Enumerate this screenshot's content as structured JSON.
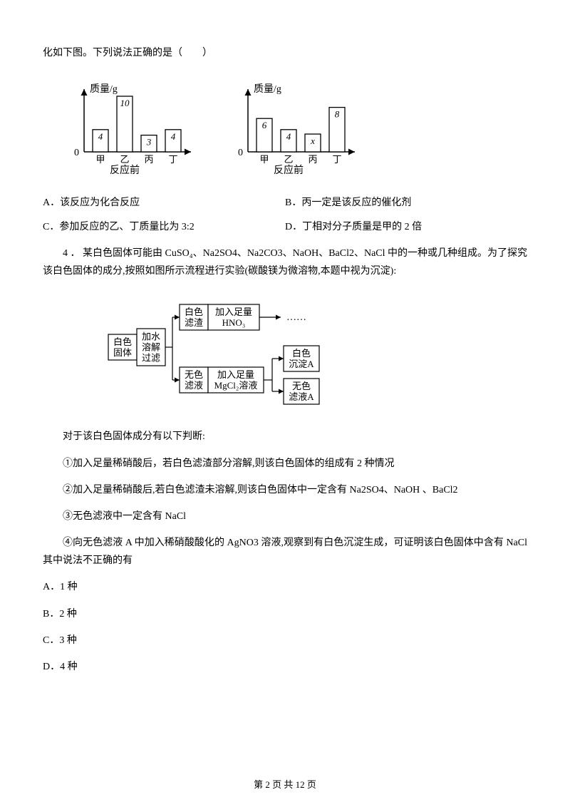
{
  "q3": {
    "intro": "化如下图。下列说法正确的是（　　）",
    "chart_before": {
      "ylabel": "质量/g",
      "xlabel": "反应前",
      "bars": [
        {
          "label": "甲",
          "value": 4,
          "display": "4"
        },
        {
          "label": "乙",
          "value": 10,
          "display": "10"
        },
        {
          "label": "丙",
          "value": 3,
          "display": "3"
        },
        {
          "label": "丁",
          "value": 4,
          "display": "4"
        }
      ],
      "axis_color": "#000000",
      "bg": "#ffffff",
      "bar_fill": "#ffffff",
      "bar_stroke": "#000000"
    },
    "chart_after": {
      "ylabel": "质量/g",
      "xlabel": "反应前",
      "bars": [
        {
          "label": "甲",
          "value": 6,
          "display": "6"
        },
        {
          "label": "乙",
          "value": 4,
          "display": "4"
        },
        {
          "label": "丙",
          "value": 3.2,
          "display": "x"
        },
        {
          "label": "丁",
          "value": 8,
          "display": "8"
        }
      ],
      "axis_color": "#000000",
      "bg": "#ffffff",
      "bar_fill": "#ffffff",
      "bar_stroke": "#000000"
    },
    "optA": "A．该反应为化合反应",
    "optB": "B．丙一定是该反应的催化剂",
    "optC": "C．参加反应的乙、丁质量比为 3:2",
    "optD": "D．丁相对分子质量是甲的 2 倍"
  },
  "q4": {
    "number": "4 ．",
    "text": "某白色固体可能由 CuSO₄、Na2SO4、Na2CO3、NaOH、BaCl2、NaCl 中的一种或几种组成。为了探究该白色固体的成分,按照如图所示流程进行实验(碳酸镁为微溶物,本题中视为沉淀):",
    "flowchart": {
      "boxes": {
        "start": "白色\n固体",
        "op1": "加水\n溶解\n过滤",
        "residue": "白色\n滤渣",
        "hno3": "加入足量\nHNO₃",
        "dots": "……",
        "filtrate": "无色\n滤液",
        "mgcl2": "加入足量\nMgCl₂溶液",
        "precA": "白色\n沉淀A",
        "liqA": "无色\n滤液A"
      },
      "font_family": "KaiTi",
      "stroke": "#000000"
    },
    "lead": "对于该白色固体成分有以下判断:",
    "s1": "①加入足量稀硝酸后，若白色滤渣部分溶解,则该白色固体的组成有 2 种情况",
    "s2": "②加入足量稀硝酸后,若白色滤渣未溶解,则该白色固体中一定含有 Na2SO4、NaOH 、BaCl2",
    "s3": "③无色滤液中一定含有 NaCl",
    "s4": "④向无色滤液 A 中加入稀硝酸酸化的 AgNO3 溶液,观察到有白色沉淀生成，可证明该白色固体中含有 NaCl 其中说法不正确的有",
    "optA": "A．1 种",
    "optB": "B．2 种",
    "optC": "C．3 种",
    "optD": "D．4 种"
  },
  "footer": {
    "text": "第 2 页 共 12 页"
  }
}
